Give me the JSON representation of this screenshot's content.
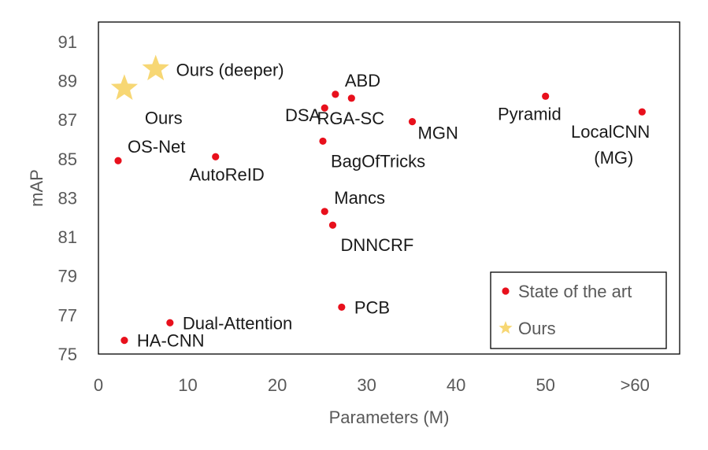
{
  "chart_data": {
    "type": "scatter",
    "title": "",
    "xlabel": "Parameters (M)",
    "ylabel": "mAP",
    "xlim": [
      0,
      65
    ],
    "ylim": [
      75,
      92
    ],
    "x_ticks": [
      {
        "value": 0,
        "label": "0"
      },
      {
        "value": 10,
        "label": "10"
      },
      {
        "value": 20,
        "label": "20"
      },
      {
        "value": 30,
        "label": "30"
      },
      {
        "value": 40,
        "label": "40"
      },
      {
        "value": 50,
        "label": "50"
      },
      {
        "value": 60,
        "label": ">60"
      }
    ],
    "y_ticks": [
      {
        "value": 75,
        "label": "75"
      },
      {
        "value": 77,
        "label": "77"
      },
      {
        "value": 79,
        "label": "79"
      },
      {
        "value": 81,
        "label": "81"
      },
      {
        "value": 83,
        "label": "83"
      },
      {
        "value": 85,
        "label": "85"
      },
      {
        "value": 87,
        "label": "87"
      },
      {
        "value": 89,
        "label": "89"
      },
      {
        "value": 91,
        "label": "91"
      }
    ],
    "grid": false,
    "legend": {
      "position": "bottom-right",
      "entries": [
        {
          "name": "State of the art",
          "marker": "circle",
          "color": "#e8101c"
        },
        {
          "name": "Ours",
          "marker": "star",
          "color": "#f7d774"
        }
      ]
    },
    "series": [
      {
        "name": "State of the art",
        "marker": "circle",
        "color": "#e8101c",
        "points": [
          {
            "label": "OS-Net",
            "x": 2.2,
            "y": 84.9,
            "label_pos": "above-right"
          },
          {
            "label": "AutoReID",
            "x": 13.1,
            "y": 85.1,
            "label_pos": "below-left"
          },
          {
            "label": "DSA",
            "x": 25.3,
            "y": 87.6,
            "label_pos": "left-below"
          },
          {
            "label": "ABD",
            "x": 26.5,
            "y": 88.3,
            "label_pos": "above-right"
          },
          {
            "label": "RGA-SC",
            "x": 28.3,
            "y": 88.1,
            "label_pos": "below"
          },
          {
            "label": "MGN",
            "x": 35.1,
            "y": 86.9,
            "label_pos": "right-below"
          },
          {
            "label": "BagOfTricks",
            "x": 25.1,
            "y": 85.9,
            "label_pos": "below-right"
          },
          {
            "label": "Mancs",
            "x": 25.3,
            "y": 82.3,
            "label_pos": "above-right"
          },
          {
            "label": "DNNCRF",
            "x": 26.2,
            "y": 81.6,
            "label_pos": "below-right"
          },
          {
            "label": "PCB",
            "x": 27.2,
            "y": 77.4,
            "label_pos": "right"
          },
          {
            "label": "Dual-Attention",
            "x": 8.0,
            "y": 76.6,
            "label_pos": "right"
          },
          {
            "label": "HA-CNN",
            "x": 2.9,
            "y": 75.7,
            "label_pos": "right"
          },
          {
            "label": "Pyramid",
            "x": 50.0,
            "y": 88.2,
            "label_pos": "below-left"
          },
          {
            "label": "LocalCNN",
            "label2": "(MG)",
            "x": 60.8,
            "y": 87.4,
            "label_pos": "below-left"
          }
        ]
      },
      {
        "name": "Ours",
        "marker": "star",
        "color": "#f7d774",
        "points": [
          {
            "label": "Ours (deeper)",
            "x": 6.4,
            "y": 89.6,
            "label_pos": "right"
          },
          {
            "label": "Ours",
            "x": 2.9,
            "y": 88.6,
            "label_pos": "below-right"
          }
        ]
      }
    ]
  }
}
